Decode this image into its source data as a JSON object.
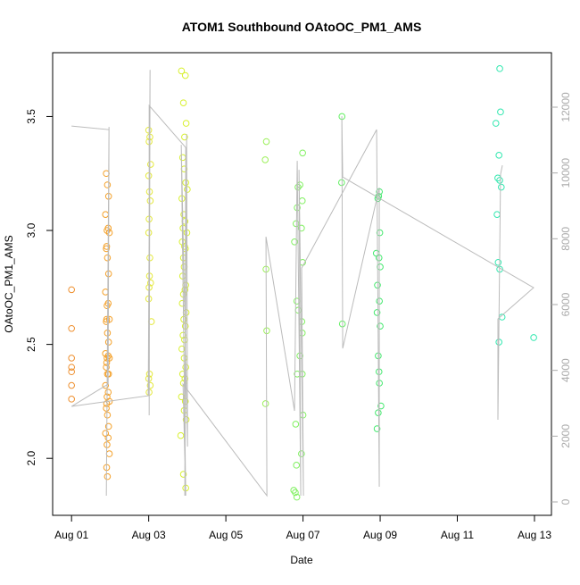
{
  "chart_data": {
    "type": "scatter",
    "title": "ATOM1 Southbound OAtoOC_PM1_AMS",
    "x_label": "Date",
    "y_label": "OAtoOC_PM1_AMS",
    "xlim": [
      -0.49,
      12.44
    ],
    "xticks": [
      {
        "value": 0,
        "label": "Aug 01"
      },
      {
        "value": 2,
        "label": "Aug 03"
      },
      {
        "value": 4,
        "label": "Aug 05"
      },
      {
        "value": 6,
        "label": "Aug 07"
      },
      {
        "value": 8,
        "label": "Aug 09"
      },
      {
        "value": 10,
        "label": "Aug 11"
      },
      {
        "value": 12,
        "label": "Aug 13"
      }
    ],
    "ylim": [
      1.75,
      3.78
    ],
    "yticks": [
      {
        "value": 2,
        "label": "2.0"
      },
      2.5,
      {
        "value": 3,
        "label": "3.0"
      },
      3.5
    ],
    "y2lim": [
      -407,
      13656
    ],
    "y2ticks": [
      0,
      2000,
      4000,
      6000,
      8000,
      10000,
      12000
    ],
    "series": [
      {
        "color": "#ee9030",
        "x": [
          0,
          0,
          0,
          0,
          0,
          0,
          0
        ],
        "values": [
          2.74,
          2.57,
          2.44,
          2.4,
          2.38,
          2.32,
          2.26
        ]
      },
      {
        "color": "#f4a028",
        "x": [
          0.9,
          0.93,
          0.96,
          0.88,
          0.95,
          0.92,
          0.98,
          0.91,
          0.9,
          0.93,
          0.96,
          0.88,
          0.95,
          0.92,
          0.98,
          0.91,
          0.9,
          0.93,
          0.96,
          0.88,
          0.95,
          0.92,
          0.98,
          0.91,
          0.9,
          0.93,
          0.96,
          0.88,
          0.95,
          0.92,
          0.98,
          0.91,
          0.9,
          0.93,
          0.96,
          0.88,
          0.95,
          0.92,
          0.98,
          0.91,
          0.93
        ],
        "values": [
          3.25,
          3.2,
          3.15,
          3.07,
          3.01,
          3.0,
          2.99,
          2.93,
          2.92,
          2.88,
          2.81,
          2.73,
          2.68,
          2.67,
          2.61,
          2.61,
          2.6,
          2.55,
          2.51,
          2.46,
          2.45,
          2.44,
          2.44,
          2.42,
          2.4,
          2.37,
          2.37,
          2.32,
          2.29,
          2.27,
          2.25,
          2.24,
          2.22,
          2.19,
          2.14,
          2.11,
          2.09,
          2.06,
          2.02,
          1.96,
          1.92
        ]
      },
      {
        "color": "#e4e83a",
        "x": [
          2.0,
          2.03,
          2.01,
          2.05,
          2.0,
          2.02,
          2.04,
          2.01,
          2.0,
          2.03,
          2.02,
          2.05,
          2.01,
          2.0,
          2.07,
          2.02,
          2.0,
          2.04,
          2.01
        ],
        "values": [
          3.44,
          3.41,
          3.39,
          3.29,
          3.24,
          3.17,
          3.13,
          3.05,
          2.99,
          2.88,
          2.8,
          2.77,
          2.75,
          2.7,
          2.6,
          2.37,
          2.35,
          2.32,
          2.29
        ]
      },
      {
        "color": "#d8f030",
        "x": [
          2.85,
          2.95,
          2.9,
          2.97,
          2.93,
          2.88,
          2.92,
          2.96,
          3.0,
          2.86,
          2.91,
          2.94,
          2.89,
          2.99,
          2.87,
          2.93,
          2.95,
          2.9,
          2.92,
          2.88,
          2.96,
          2.94,
          2.9,
          2.87,
          2.97,
          2.91,
          2.95,
          2.89,
          2.93,
          2.86,
          2.92,
          2.96,
          2.88,
          2.94,
          2.9,
          2.85,
          2.95,
          2.92,
          2.97,
          2.83,
          2.9,
          2.96
        ],
        "values": [
          3.7,
          3.68,
          3.56,
          3.47,
          3.41,
          3.32,
          3.27,
          3.21,
          3.18,
          3.14,
          3.07,
          3.04,
          3.01,
          2.99,
          2.95,
          2.93,
          2.92,
          2.88,
          2.84,
          2.8,
          2.76,
          2.74,
          2.72,
          2.68,
          2.64,
          2.61,
          2.58,
          2.54,
          2.52,
          2.48,
          2.44,
          2.4,
          2.37,
          2.35,
          2.33,
          2.27,
          2.25,
          2.21,
          2.17,
          2.1,
          1.93,
          1.87
        ]
      },
      {
        "color": "#9cf05a",
        "x": [
          5.05,
          5.02,
          5.04,
          5.06,
          5.03
        ],
        "values": [
          3.39,
          3.31,
          2.83,
          2.56,
          2.24
        ]
      },
      {
        "color": "#80f060",
        "x": [
          5.99,
          5.92,
          5.87,
          5.98,
          5.85,
          5.82,
          5.96,
          5.78,
          5.99,
          5.84,
          5.88,
          5.97,
          5.98,
          5.92,
          5.85,
          5.98,
          6.0,
          5.81,
          5.96,
          5.83,
          5.76,
          5.8,
          5.84
        ],
        "values": [
          3.34,
          3.2,
          3.19,
          3.13,
          3.1,
          3.03,
          3.01,
          2.95,
          2.86,
          2.69,
          2.65,
          2.6,
          2.55,
          2.45,
          2.37,
          2.37,
          2.19,
          2.15,
          2.02,
          1.97,
          1.86,
          1.85,
          1.83
        ]
      },
      {
        "color": "#64f064",
        "x": [
          7.01,
          7.0,
          7.02
        ],
        "values": [
          3.5,
          3.21,
          2.59
        ]
      },
      {
        "color": "#44e86e",
        "x": [
          7.98,
          7.96,
          7.94,
          7.99,
          7.9,
          7.97,
          8.0,
          7.93,
          7.98,
          7.92,
          8.0,
          7.95,
          7.97,
          7.98,
          8.02,
          7.95,
          7.92
        ],
        "values": [
          3.17,
          3.15,
          3.14,
          2.99,
          2.9,
          2.88,
          2.84,
          2.76,
          2.69,
          2.64,
          2.58,
          2.45,
          2.38,
          2.33,
          2.23,
          2.2,
          2.13
        ]
      },
      {
        "color": "#33e8b0",
        "x": [
          11.1,
          11.12,
          11.0,
          11.08,
          11.05,
          11.1,
          11.14,
          11.03,
          11.06,
          11.1,
          11.16,
          11.08,
          11.98
        ],
        "values": [
          3.71,
          3.52,
          3.47,
          3.33,
          3.23,
          3.22,
          3.19,
          3.07,
          2.86,
          2.83,
          2.62,
          2.51,
          2.53
        ]
      },
      {
        "type": "line",
        "axis": "y2",
        "color": "#bbbbbb",
        "x": [
          0,
          0.971,
          0.902,
          0.971,
          0.948,
          0,
          1.988,
          2.035,
          2.012,
          2.012,
          2.96,
          2.936,
          2.983,
          3.006,
          2.844,
          2.96,
          2.89,
          5.064,
          5.04,
          5.78,
          5.85,
          5.942,
          5.896,
          6.012,
          5.965,
          7.908,
          7.977,
          7.977,
          7.029,
          7.006,
          7.029,
          11.977,
          11.052,
          11.052,
          11.121,
          11.168
        ],
        "values": [
          11425,
          11317,
          190,
          11398,
          3582,
          2904,
          3229,
          13134,
          2632,
          12049,
          10774,
          190,
          11181,
          1682,
          10855,
          190,
          3582,
          190,
          8060,
          2768,
          10367,
          190,
          10096,
          190,
          7110,
          11317,
          461,
          9552,
          4668,
          11724,
          9878,
          6513,
          5563,
          2497,
          9959,
          10231
        ]
      }
    ]
  }
}
